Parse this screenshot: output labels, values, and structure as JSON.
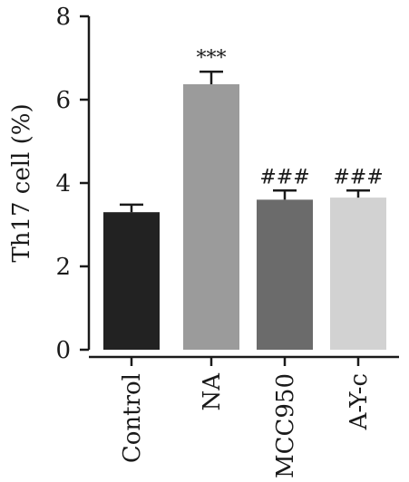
{
  "chart_data": {
    "type": "bar",
    "title": "",
    "xlabel": "",
    "ylabel": "Th17 cell (%)",
    "ylim": [
      0,
      8
    ],
    "yticks": [
      "0",
      "2",
      "4",
      "6",
      "8"
    ],
    "grid": false,
    "categories": [
      "Control",
      "NA",
      "MCC950",
      "A-Y-c"
    ],
    "values": [
      3.3,
      6.37,
      3.6,
      3.65
    ],
    "errors": [
      0.18,
      0.3,
      0.22,
      0.17
    ],
    "annotations": [
      "",
      "***",
      "###",
      "###"
    ],
    "colors": [
      "#222222",
      "#9b9b9b",
      "#6b6b6b",
      "#d2d2d2"
    ]
  }
}
